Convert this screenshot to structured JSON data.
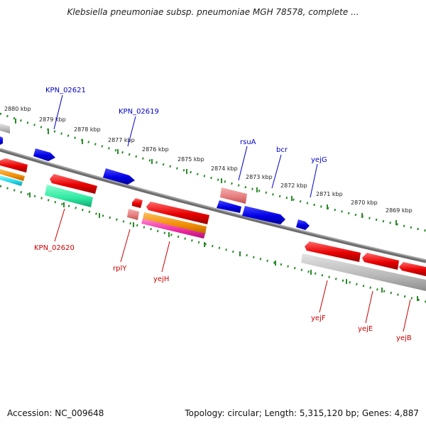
{
  "title": "Klebsiella pneumoniae subsp. pneumoniae MGH 78578, complete ...",
  "accession": "Accession: NC_009648",
  "summary": "Topology: circular; Length: 5,315,120 bp; Genes: 4,887",
  "colors": {
    "backbone": "#7a7a7a",
    "tick": "#2a8a2a",
    "label_forward": "#0000cc",
    "label_reverse": "#cc0000"
  },
  "kbp_labels": [
    "2880 kbp",
    "2879 kbp",
    "2878 kbp",
    "2877 kbp",
    "2876 kbp",
    "2875 kbp",
    "2874 kbp",
    "2873 kbp",
    "2872 kbp",
    "2871 kbp",
    "2870 kbp",
    "2869 kbp"
  ],
  "gene_labels": {
    "KPN_02621": "KPN_02621",
    "KPN_02619": "KPN_02619",
    "rsuA": "rsuA",
    "bcr": "bcr",
    "yejG": "yejG",
    "KPN_02620": "KPN_02620",
    "rplY": "rplY",
    "yejH": "yejH",
    "yejF": "yejF",
    "yejE": "yejE",
    "yejB": "yejB"
  }
}
